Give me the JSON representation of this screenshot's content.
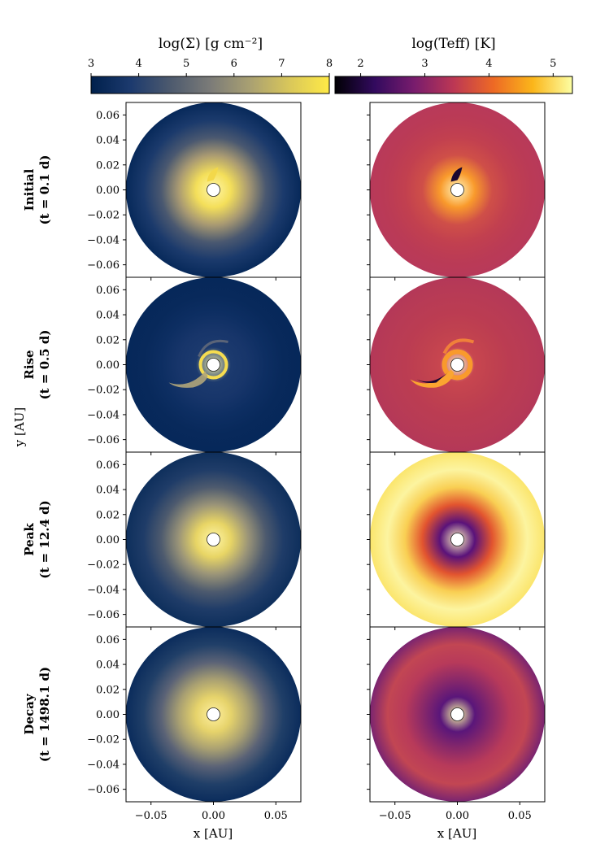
{
  "figure": {
    "colorbars": [
      {
        "id": "sigma",
        "title": "log(Σ) [g cm⁻²]",
        "ticks": [
          "3",
          "4",
          "5",
          "6",
          "7",
          "8"
        ],
        "range": [
          3,
          8
        ],
        "colors": [
          "#00204c",
          "#1c3a6e",
          "#4d5a6e",
          "#7b7b78",
          "#a9a072",
          "#d9c75a",
          "#ffea46"
        ]
      },
      {
        "id": "teff",
        "title": "log(Teff) [K]",
        "ticks": [
          "2",
          "3",
          "4",
          "5"
        ],
        "range": [
          1.6,
          5.3
        ],
        "colors": [
          "#000004",
          "#320a5e",
          "#781c6d",
          "#bc3754",
          "#ed6925",
          "#fbb61a",
          "#fcffa4"
        ]
      }
    ],
    "rows": [
      {
        "name": "Initial",
        "time": "(t = 0.1 d)",
        "sigma_bg": [
          "#fff6a8",
          "#f4df5a",
          "#a99a72",
          "#4a5870",
          "#1b3a6c",
          "#07295a"
        ],
        "teff_bg": [
          "#fff8c0",
          "#f99a2c",
          "#cf4f48",
          "#c2404f",
          "#bb3b55",
          "#b8395a"
        ]
      },
      {
        "name": "Rise",
        "time": "(t = 0.5 d)",
        "sigma_bg": [
          "#fff6a8",
          "#1c3a6e",
          "#17356a",
          "#0d2e62",
          "#08295b",
          "#06285a"
        ],
        "teff_bg": [
          "#fff8c0",
          "#c8464f",
          "#c0414f",
          "#bb3c52",
          "#b83b55",
          "#b43858"
        ]
      },
      {
        "name": "Peak",
        "time": "(t = 12.4 d)",
        "sigma_bg": [
          "#fff6a8",
          "#e8d565",
          "#9a9478",
          "#4d5a6e",
          "#1f3c68",
          "#0e2f5c"
        ],
        "teff_bg": [
          "#fff8c0",
          "#5a127a",
          "#e2542f",
          "#f9cf53",
          "#fcf4a0",
          "#fbe56c"
        ]
      },
      {
        "name": "Decay",
        "time": "(t = 1498.1 d)",
        "sigma_bg": [
          "#fff0a0",
          "#e6d36b",
          "#a9a072",
          "#5a6276",
          "#203f68",
          "#0b2c5c"
        ],
        "teff_bg": [
          "#fcffa4",
          "#5a167a",
          "#8a2969",
          "#b83a5a",
          "#c24653",
          "#7a2470"
        ]
      }
    ],
    "axes": {
      "yticks": [
        "0.06",
        "0.04",
        "0.02",
        "0.00",
        "−0.02",
        "−0.04",
        "−0.06"
      ],
      "xticks": [
        "−0.05",
        "0.00",
        "0.05"
      ],
      "ylabel": "y [AU]",
      "xlabel": "x [AU]"
    }
  }
}
